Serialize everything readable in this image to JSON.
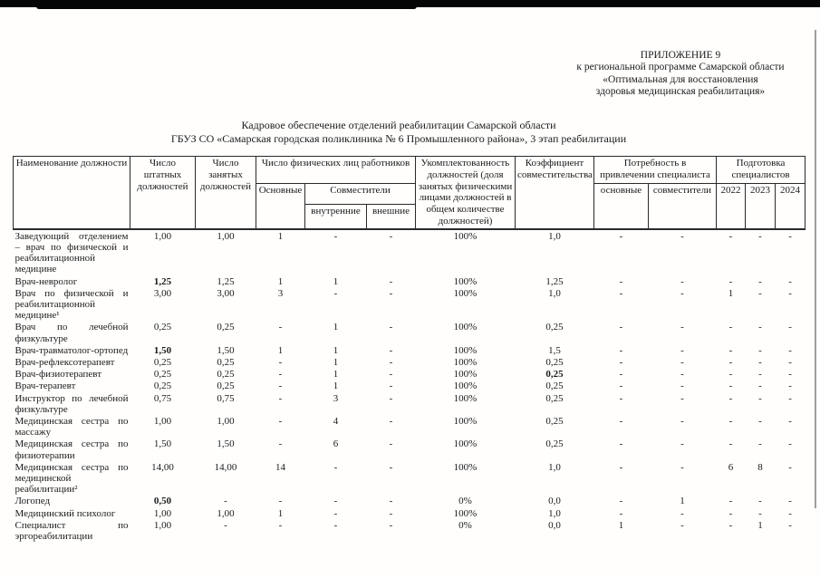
{
  "appendix": {
    "line1": "ПРИЛОЖЕНИЕ 9",
    "line2": "к региональной программе Самарской области",
    "line3": "«Оптимальная для восстановления",
    "line4": "здоровья медицинская реабилитация»"
  },
  "title": {
    "line1": "Кадровое обеспечение отделений реабилитации Самарской области",
    "line2": "ГБУЗ СО «Самарская городская поликлиника № 6 Промышленного района», 3 этап реабилитации"
  },
  "table": {
    "headers": {
      "position": "Наименование должности",
      "staff_positions": "Число штатных должностей",
      "occupied_positions": "Число занятых должностей",
      "physical_persons": "Число физических лиц работников",
      "main": "Основные",
      "part_timers": "Совместители",
      "internal": "внутренние",
      "external": "внешние",
      "staffing_level": "Укомплектованность должностей (доля занятых физическими лицами должностей в общем количестве должностей)",
      "coefficient": "Коэффициент совместительства",
      "need_specialist": "Потребность в привлечении специалиста",
      "need_main": "основные",
      "need_part": "совместители",
      "training": "Подготовка специалистов",
      "year_2022": "2022",
      "year_2023": "2023",
      "year_2024": "2024"
    },
    "rows": [
      {
        "name": "Заведующий отделением – врач по физической и реабилитационной медицине",
        "cells": [
          "1,00",
          "1,00",
          "1",
          "-",
          "-",
          "100%",
          "1,0",
          "-",
          "-",
          "-",
          "-",
          "-"
        ]
      },
      {
        "name": "Врач-невролог",
        "cells": [
          "1,25",
          "1,25",
          "1",
          "1",
          "-",
          "100%",
          "1,25",
          "-",
          "-",
          "-",
          "-",
          "-"
        ],
        "bold": [
          0
        ]
      },
      {
        "name": "Врач по физической и реабилитационной медицине¹",
        "cells": [
          "3,00",
          "3,00",
          "3",
          "-",
          "-",
          "100%",
          "1,0",
          "-",
          "-",
          "1",
          "-",
          "-"
        ]
      },
      {
        "name": "Врач по лечебной физкультуре",
        "cells": [
          "0,25",
          "0,25",
          "-",
          "1",
          "-",
          "100%",
          "0,25",
          "-",
          "-",
          "-",
          "-",
          "-"
        ]
      },
      {
        "name": "Врач-травматолог-ортопед",
        "cells": [
          "1,50",
          "1,50",
          "1",
          "1",
          "-",
          "100%",
          "1,5",
          "-",
          "-",
          "-",
          "-",
          "-"
        ],
        "bold": [
          0
        ]
      },
      {
        "name": "Врач-рефлексотерапевт",
        "cells": [
          "0,25",
          "0,25",
          "-",
          "1",
          "-",
          "100%",
          "0,25",
          "-",
          "-",
          "-",
          "-",
          "-"
        ]
      },
      {
        "name": "Врач-физиотерапевт",
        "cells": [
          "0,25",
          "0,25",
          "-",
          "1",
          "-",
          "100%",
          "0,25",
          "-",
          "-",
          "-",
          "-",
          "-"
        ],
        "bold": [
          6
        ]
      },
      {
        "name": "Врач-терапевт",
        "cells": [
          "0,25",
          "0,25",
          "-",
          "1",
          "-",
          "100%",
          "0,25",
          "-",
          "-",
          "-",
          "-",
          "-"
        ]
      },
      {
        "name": "Инструктор по лечебной физкультуре",
        "cells": [
          "0,75",
          "0,75",
          "-",
          "3",
          "-",
          "100%",
          "0,25",
          "-",
          "-",
          "-",
          "-",
          "-"
        ]
      },
      {
        "name": "Медицинская сестра по массажу",
        "cells": [
          "1,00",
          "1,00",
          "-",
          "4",
          "-",
          "100%",
          "0,25",
          "-",
          "-",
          "-",
          "-",
          "-"
        ]
      },
      {
        "name": "Медицинская сестра по физиотерапии",
        "cells": [
          "1,50",
          "1,50",
          "-",
          "6",
          "-",
          "100%",
          "0,25",
          "-",
          "-",
          "-",
          "-",
          "-"
        ]
      },
      {
        "name": "Медицинская сестра по медицинской реабилитации²",
        "cells": [
          "14,00",
          "14,00",
          "14",
          "-",
          "-",
          "100%",
          "1,0",
          "-",
          "-",
          "6",
          "8",
          "-"
        ]
      },
      {
        "name": "Логопед",
        "cells": [
          "0,50",
          "-",
          "-",
          "-",
          "-",
          "0%",
          "0,0",
          "-",
          "1",
          "-",
          "-",
          "-"
        ],
        "bold": [
          0
        ]
      },
      {
        "name": "Медицинский психолог",
        "cells": [
          "1,00",
          "1,00",
          "1",
          "-",
          "-",
          "100%",
          "1,0",
          "-",
          "-",
          "-",
          "-",
          "-"
        ]
      },
      {
        "name": "Специалист по эргореабилитации",
        "cells": [
          "1,00",
          "-",
          "-",
          "-",
          "-",
          "0%",
          "0,0",
          "1",
          "-",
          "-",
          "1",
          "-"
        ]
      }
    ]
  }
}
